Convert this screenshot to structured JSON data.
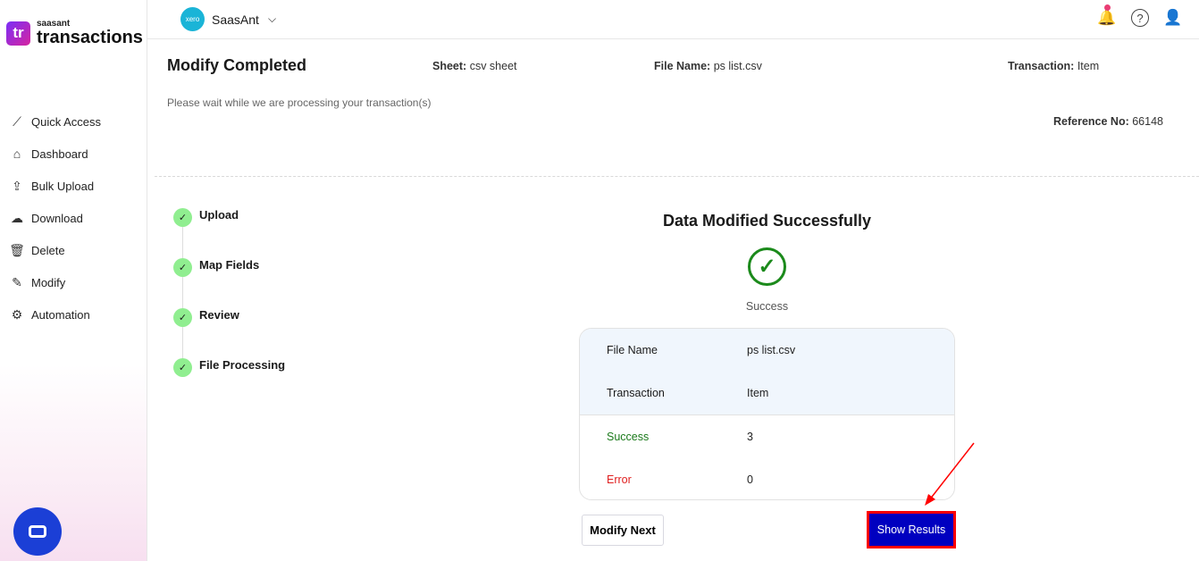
{
  "brand": {
    "small": "saasant",
    "big": "transactions",
    "mark": "tr"
  },
  "sidebar": {
    "items": [
      {
        "label": "Quick Access",
        "icon": "chart-line-icon",
        "glyph": "⟋"
      },
      {
        "label": "Dashboard",
        "icon": "home-icon",
        "glyph": "⌂"
      },
      {
        "label": "Bulk Upload",
        "icon": "upload-icon",
        "glyph": "⇪"
      },
      {
        "label": "Download",
        "icon": "cloud-download-icon",
        "glyph": "☁"
      },
      {
        "label": "Delete",
        "icon": "trash-icon",
        "glyph": "🗑"
      },
      {
        "label": "Modify",
        "icon": "edit-file-icon",
        "glyph": "✎"
      },
      {
        "label": "Automation",
        "icon": "gears-icon",
        "glyph": "⚙"
      }
    ]
  },
  "topbar": {
    "org_badge": "xero",
    "org_name": "SaasAnt"
  },
  "header": {
    "title": "Modify Completed",
    "sheet_label": "Sheet:",
    "sheet": "csv sheet",
    "file_label": "File Name:",
    "file": "ps list.csv",
    "txn_label": "Transaction:",
    "txn": "Item",
    "subtitle": "Please wait while we are processing your transaction(s)",
    "ref_label": "Reference No:",
    "ref": "66148"
  },
  "steps": [
    "Upload",
    "Map Fields",
    "Review",
    "File Processing"
  ],
  "result": {
    "heading": "Data Modified Successfully",
    "status": "Success",
    "rows": [
      {
        "k": "File Name",
        "v": "ps list.csv"
      },
      {
        "k": "Transaction",
        "v": "Item"
      },
      {
        "k": "Success",
        "v": "3"
      },
      {
        "k": "Error",
        "v": "0"
      }
    ]
  },
  "buttons": {
    "next": "Modify Next",
    "show": "Show Results"
  },
  "colors": {
    "accent": "#0000c0",
    "success": "#1b8a1b",
    "error": "#e02020",
    "highlight": "#ff0000"
  }
}
